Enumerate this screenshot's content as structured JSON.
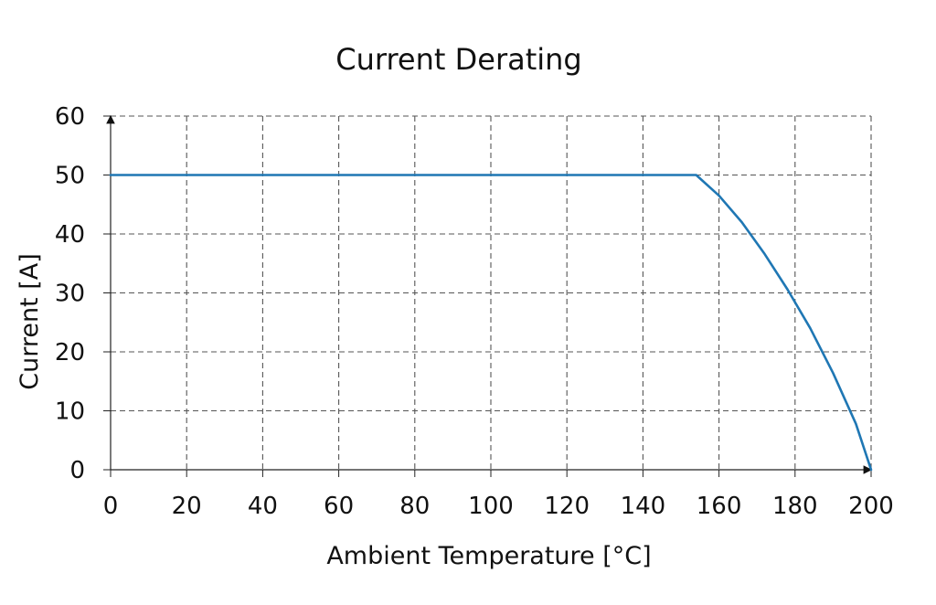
{
  "chart_data": {
    "type": "line",
    "title": "Current Derating",
    "xlabel": "Ambient Temperature [°C]",
    "ylabel": "Current [A]",
    "xlim": [
      0,
      200
    ],
    "ylim": [
      0,
      60
    ],
    "x_ticks": [
      0,
      20,
      40,
      60,
      80,
      100,
      120,
      140,
      160,
      180,
      200
    ],
    "y_ticks": [
      0,
      10,
      20,
      30,
      40,
      50,
      60
    ],
    "grid": "dashed",
    "series": [
      {
        "points": [
          [
            0,
            50
          ],
          [
            154,
            50
          ],
          [
            160,
            46.5
          ],
          [
            166,
            42.0
          ],
          [
            172,
            36.6
          ],
          [
            178,
            30.6
          ],
          [
            184,
            24.0
          ],
          [
            190,
            16.4
          ],
          [
            196,
            7.8
          ],
          [
            200,
            0
          ]
        ],
        "color": "#1f77b4"
      }
    ]
  },
  "colors": {
    "line": "#1f77b4",
    "grid": "#555555",
    "axis": "#222222"
  }
}
